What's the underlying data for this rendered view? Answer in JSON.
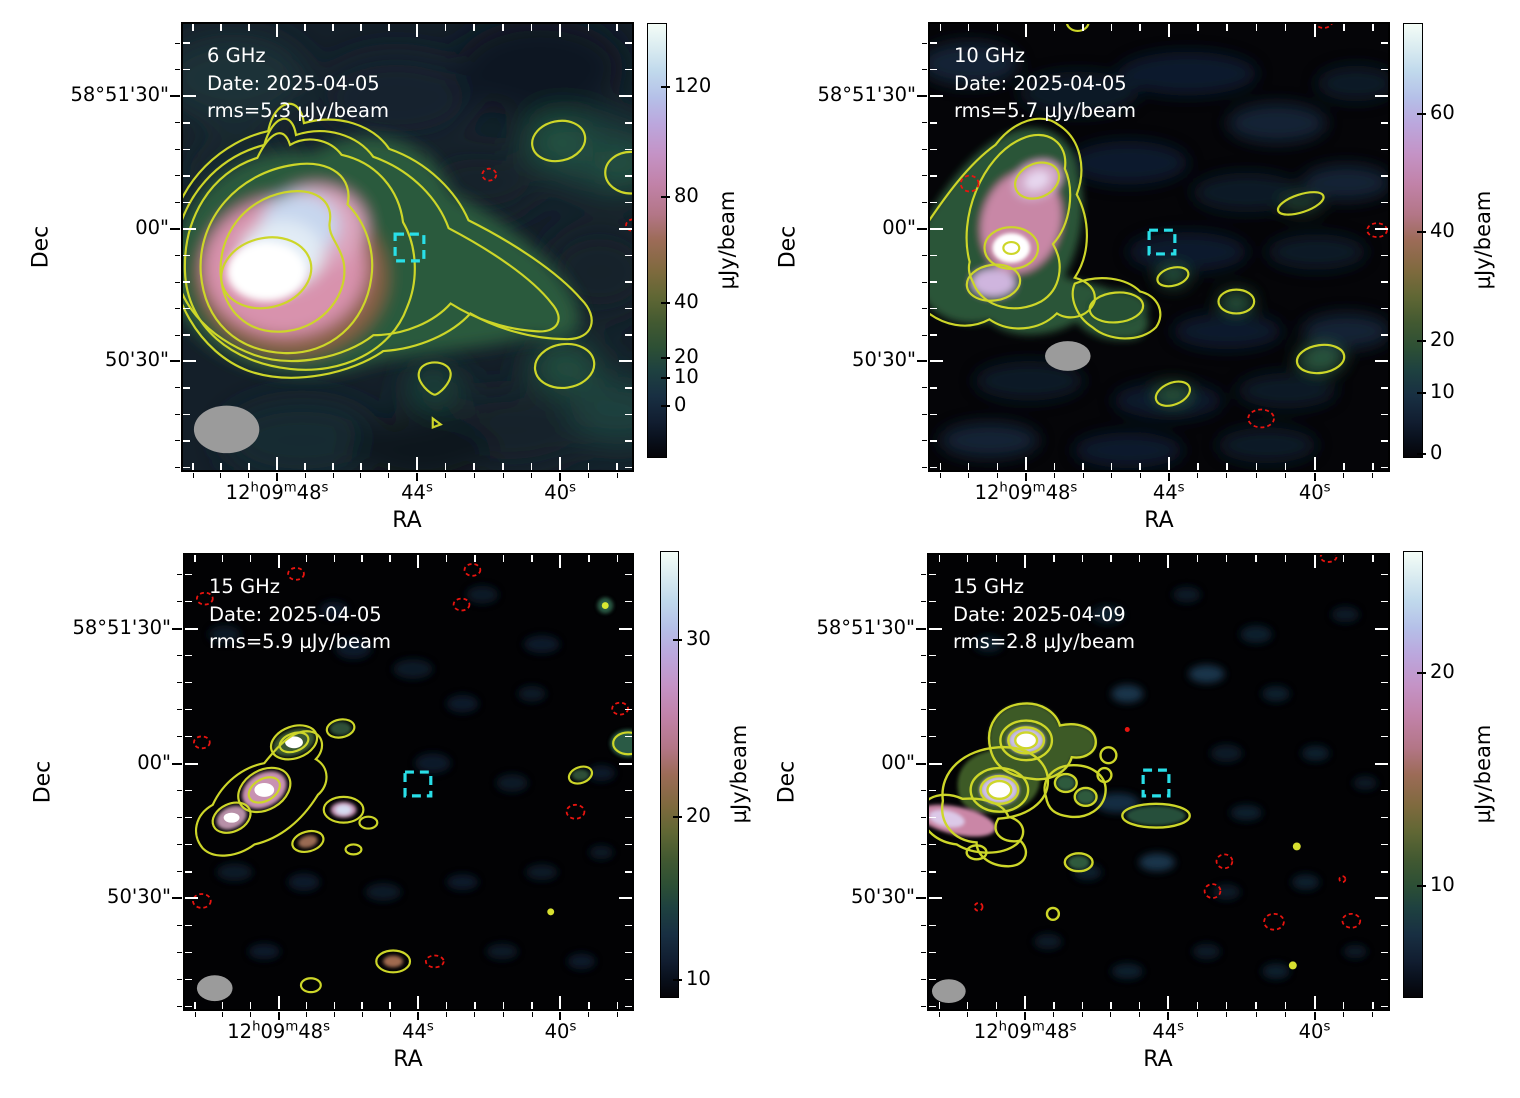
{
  "figure": {
    "type": "radio continuum image grid (2x2)",
    "colormap": "cubehelix"
  },
  "colors": {
    "background": "#ffffff",
    "contour_positive": "#cdd629",
    "contour_negative": "#e8140f",
    "target_marker": "#29dfe8",
    "beam": "#9b9b9b",
    "annotation_text": "#ffffff"
  },
  "axes": {
    "ra": {
      "label": "RA",
      "majors": [
        {
          "f": 0.212,
          "segments": [
            [
              "12",
              0
            ],
            [
              "h",
              1
            ],
            [
              "09",
              0
            ],
            [
              "m",
              1
            ],
            [
              "48",
              0
            ],
            [
              "s",
              1
            ]
          ]
        },
        {
          "f": 0.521,
          "segments": [
            [
              "44",
              0
            ],
            [
              "s",
              1
            ]
          ]
        },
        {
          "f": 0.837,
          "segments": [
            [
              "40",
              0
            ],
            [
              "s",
              1
            ]
          ]
        }
      ],
      "minors": [
        0.027,
        0.088,
        0.15,
        0.274,
        0.336,
        0.397,
        0.459,
        0.584,
        0.647,
        0.711,
        0.774,
        0.9,
        0.963
      ]
    },
    "dec": {
      "label": "Dec",
      "majors": [
        {
          "f": 0.165,
          "text": "58°51'30\""
        },
        {
          "f": 0.46,
          "text": "00\""
        },
        {
          "f": 0.754,
          "text": "50'30\""
        }
      ],
      "minors": [
        0.047,
        0.106,
        0.224,
        0.283,
        0.342,
        0.401,
        0.519,
        0.578,
        0.637,
        0.696,
        0.813,
        0.872,
        0.931,
        0.99
      ]
    }
  },
  "panels": [
    {
      "freq": "6 GHz",
      "date": "Date: 2025-04-05",
      "rms": "rms=5.3 µJy/beam",
      "colorbar": {
        "unit": "µJy/beam",
        "ticks": [
          {
            "v": "120",
            "f": 0.147
          },
          {
            "v": "80",
            "f": 0.4
          },
          {
            "v": "40",
            "f": 0.644
          },
          {
            "v": "20",
            "f": 0.77
          },
          {
            "v": "10",
            "f": 0.816
          },
          {
            "v": "0",
            "f": 0.88
          }
        ]
      }
    },
    {
      "freq": "10 GHz",
      "date": "Date: 2025-04-05",
      "rms": "rms=5.7 µJy/beam",
      "colorbar": {
        "unit": "µJy/beam",
        "ticks": [
          {
            "v": "60",
            "f": 0.21
          },
          {
            "v": "40",
            "f": 0.48
          },
          {
            "v": "20",
            "f": 0.73
          },
          {
            "v": "10",
            "f": 0.85
          },
          {
            "v": "0",
            "f": 0.99
          }
        ]
      }
    },
    {
      "freq": "15 GHz",
      "date": "Date: 2025-04-05",
      "rms": "rms=5.9 µJy/beam",
      "colorbar": {
        "unit": "µJy/beam",
        "ticks": [
          {
            "v": "30",
            "f": 0.2
          },
          {
            "v": "20",
            "f": 0.594
          },
          {
            "v": "10",
            "f": 0.96
          }
        ]
      }
    },
    {
      "freq": "15 GHz",
      "date": "Date: 2025-04-09",
      "rms": "rms=2.8 µJy/beam",
      "colorbar": {
        "unit": "µJy/beam",
        "ticks": [
          {
            "v": "20",
            "f": 0.273
          },
          {
            "v": "10",
            "f": 0.75
          }
        ]
      }
    }
  ],
  "chart_data": {
    "type": "heatmap",
    "layout": "2x2 grid of radio interferometry maps, each with its own colorbar; shared sky coordinates",
    "colormap": "cubehelix",
    "x_axis": {
      "label": "RA",
      "tick_labels": [
        "12h09m48s",
        "44s",
        "40s"
      ]
    },
    "y_axis": {
      "label": "Dec",
      "tick_labels": [
        "58°51'30\"",
        "00\"",
        "50'30\""
      ]
    },
    "colorbar_unit": "µJy/beam",
    "panels": [
      {
        "position": "top-left",
        "frequency_GHz": 6,
        "date": "2025-04-05",
        "rms_uJy_per_beam": 5.3,
        "colorbar_ticks": [
          0,
          10,
          20,
          40,
          80,
          120
        ],
        "features": [
          "bright extended source with white core and pink halo east of center",
          "green low-level emission tail extending west",
          "solid yellow positive contours (7 nested levels)",
          "small dashed red negative contours",
          "cyan dashed square marking target position near map center",
          "grey beam ellipse at bottom-left"
        ]
      },
      {
        "position": "top-right",
        "frequency_GHz": 10,
        "date": "2025-04-05",
        "rms_uJy_per_beam": 5.7,
        "colorbar_ticks": [
          0,
          10,
          20,
          40,
          60
        ],
        "features": [
          "compact bright source with white core and pink/lavender lobes at east side",
          "short green tail with contours to the south-west",
          "several isolated small yellow contour islands",
          "dashed red negative contours",
          "cyan dashed square",
          "grey beam ellipse"
        ]
      },
      {
        "position": "bottom-left",
        "frequency_GHz": 15,
        "date": "2025-04-05",
        "rms_uJy_per_beam": 5.9,
        "colorbar_ticks": [
          10,
          20,
          30
        ],
        "features": [
          "chain of compact knots with white cores along NE-SW diagonal at east side",
          "many faint noise blobs",
          "scattered small yellow contour islands",
          "dashed red negative contours",
          "cyan dashed square",
          "small grey beam ellipse"
        ]
      },
      {
        "position": "bottom-right",
        "frequency_GHz": 15,
        "date": "2025-04-09",
        "rms_uJy_per_beam": 2.8,
        "colorbar_ticks": [
          10,
          20
        ],
        "features": [
          "two bright compact sources with concentric contour rings at east side",
          "pink elongated emission reaching the east edge",
          "web of low-level yellow contours between knots",
          "dashed red negative contours",
          "cyan dashed square",
          "small grey beam ellipse"
        ]
      }
    ]
  }
}
